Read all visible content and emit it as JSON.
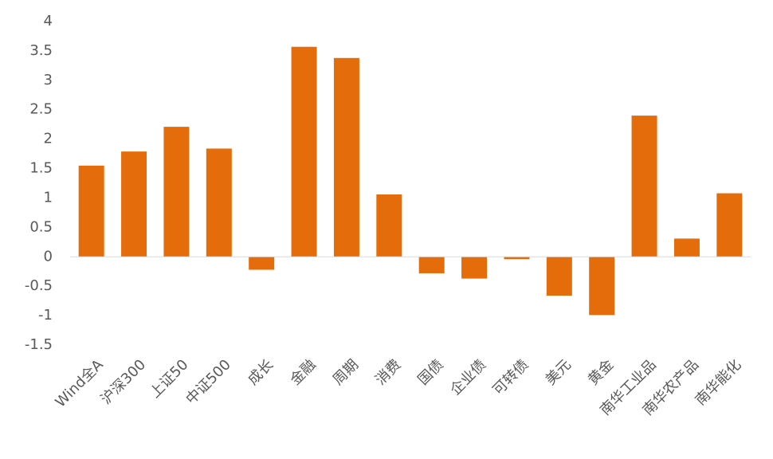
{
  "chart_data": {
    "type": "bar",
    "categories": [
      "Wind全A",
      "沪深300",
      "上证50",
      "中证500",
      "成长",
      "金融",
      "周期",
      "消费",
      "国债",
      "企业债",
      "可转债",
      "美元",
      "黄金",
      "南华工业品",
      "南华农产品",
      "南华能化"
    ],
    "values": [
      1.55,
      1.79,
      2.21,
      1.84,
      -0.22,
      3.57,
      3.38,
      1.06,
      -0.28,
      -0.37,
      -0.04,
      -0.66,
      -0.99,
      2.4,
      0.31,
      1.08
    ],
    "color": "#e46c0a",
    "ylim": [
      -1.5,
      4
    ],
    "yticks": [
      -1.5,
      -1,
      -0.5,
      0,
      0.5,
      1,
      1.5,
      2,
      2.5,
      3,
      3.5,
      4
    ],
    "grid": false
  }
}
